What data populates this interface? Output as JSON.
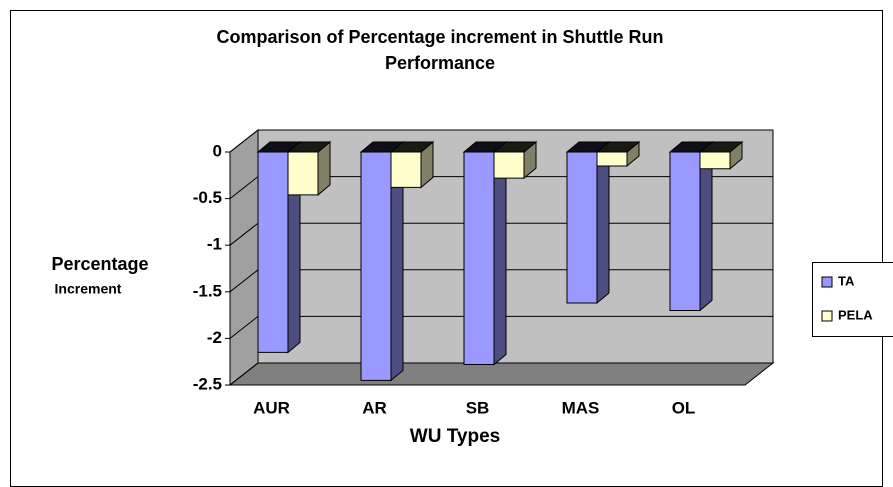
{
  "chart_data": {
    "type": "bar",
    "title": "Comparison of Percentage increment in Shuttle Run Performance",
    "ylabel": [
      "Percentage",
      "Increment"
    ],
    "xlabel": "WU Types",
    "categories": [
      "AUR",
      "AR",
      "SB",
      "MAS",
      "OL"
    ],
    "series": [
      {
        "name": "TA",
        "color": "#9999ff",
        "values": [
          -2.15,
          -2.45,
          -2.28,
          -1.62,
          -1.7
        ]
      },
      {
        "name": "PELA",
        "color": "#ffffcc",
        "values": [
          -0.46,
          -0.38,
          -0.28,
          -0.15,
          -0.18
        ]
      }
    ],
    "ylim": [
      -2.5,
      0
    ],
    "yticks": [
      0,
      -0.5,
      -1,
      -1.5,
      -2,
      -2.5
    ],
    "grid": true,
    "legend": "right"
  }
}
